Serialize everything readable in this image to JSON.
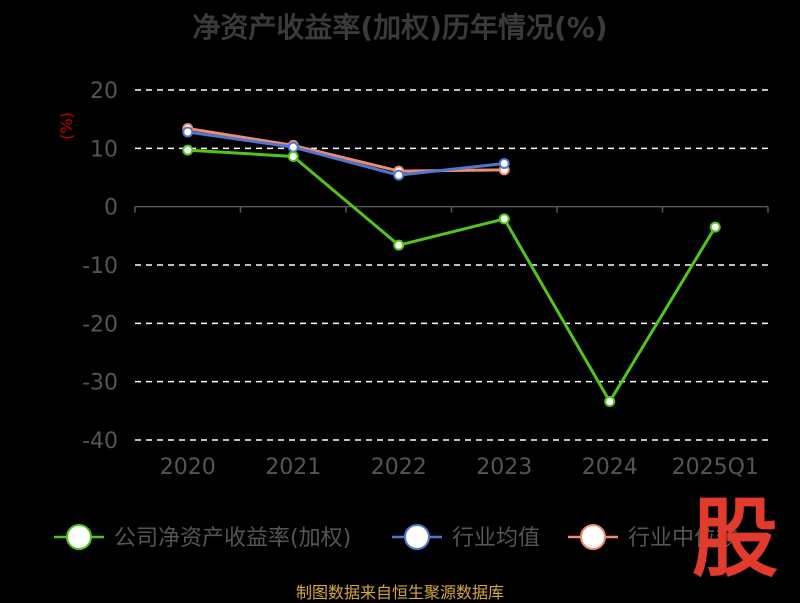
{
  "title": "净资产收益率(加权)历年情况(%)",
  "source": "制图数据来自恒生聚源数据库",
  "watermark": "股",
  "colors": {
    "background": "#000000",
    "title": "#3a3a3a",
    "axis_text": "#555555",
    "unit": "#cc0000",
    "grid": "#ffffff",
    "source": "#d8a838",
    "watermark": "#e23b2e"
  },
  "chart_data": {
    "type": "line",
    "ylabel": "(%)",
    "categories": [
      "2020",
      "2021",
      "2022",
      "2023",
      "2024",
      "2025Q1"
    ],
    "ylim": [
      -40,
      20
    ],
    "yticks": [
      20,
      10,
      0,
      -10,
      -20,
      -30,
      -40
    ],
    "grid": true,
    "legend_position": "bottom",
    "series": [
      {
        "name": "公司净资产收益率(加权)",
        "color": "#52c41a",
        "values": [
          9.7,
          8.6,
          -6.6,
          -2.1,
          -33.4,
          -3.5
        ]
      },
      {
        "name": "行业均值",
        "color": "#4f77d1",
        "values": [
          12.8,
          10.2,
          5.4,
          7.4,
          null,
          null
        ]
      },
      {
        "name": "行业中位数",
        "color": "#f08c6e",
        "values": [
          13.4,
          10.5,
          6.1,
          6.3,
          null,
          null
        ]
      }
    ]
  }
}
